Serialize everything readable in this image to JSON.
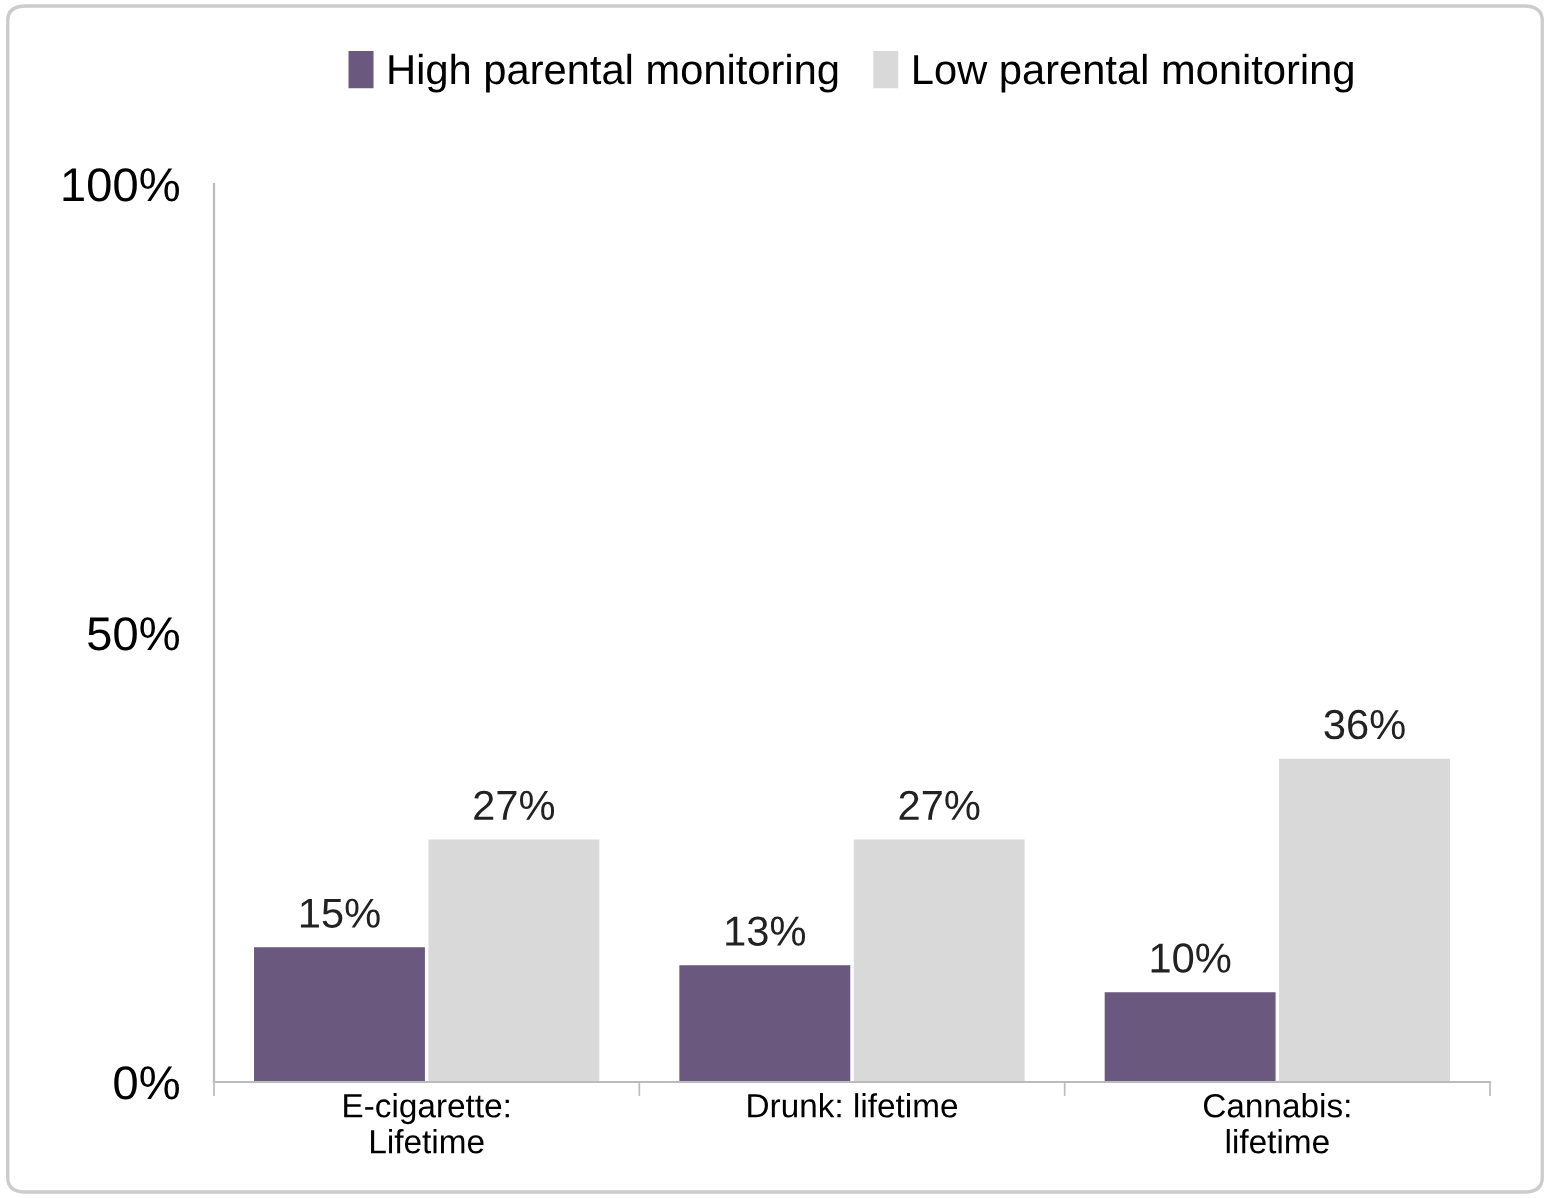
{
  "chart_data": {
    "type": "bar",
    "categories": [
      "E-cigarette:\nLifetime",
      "Drunk: lifetime",
      "Cannabis:\nlifetime"
    ],
    "series": [
      {
        "name": "High parental monitoring",
        "color": "#6a587e",
        "values": [
          15,
          13,
          10
        ],
        "value_labels": [
          "15%",
          "13%",
          "10%"
        ]
      },
      {
        "name": "Low parental monitoring",
        "color": "#d9d9d9",
        "values": [
          27,
          27,
          36
        ],
        "value_labels": [
          "27%",
          "27%",
          "36%"
        ]
      }
    ],
    "ylim": [
      0,
      100
    ],
    "yticks": [
      {
        "value": 0,
        "label": "0%"
      },
      {
        "value": 50,
        "label": "50%"
      },
      {
        "value": 100,
        "label": "100%"
      }
    ],
    "grid": false,
    "legend": "top"
  }
}
